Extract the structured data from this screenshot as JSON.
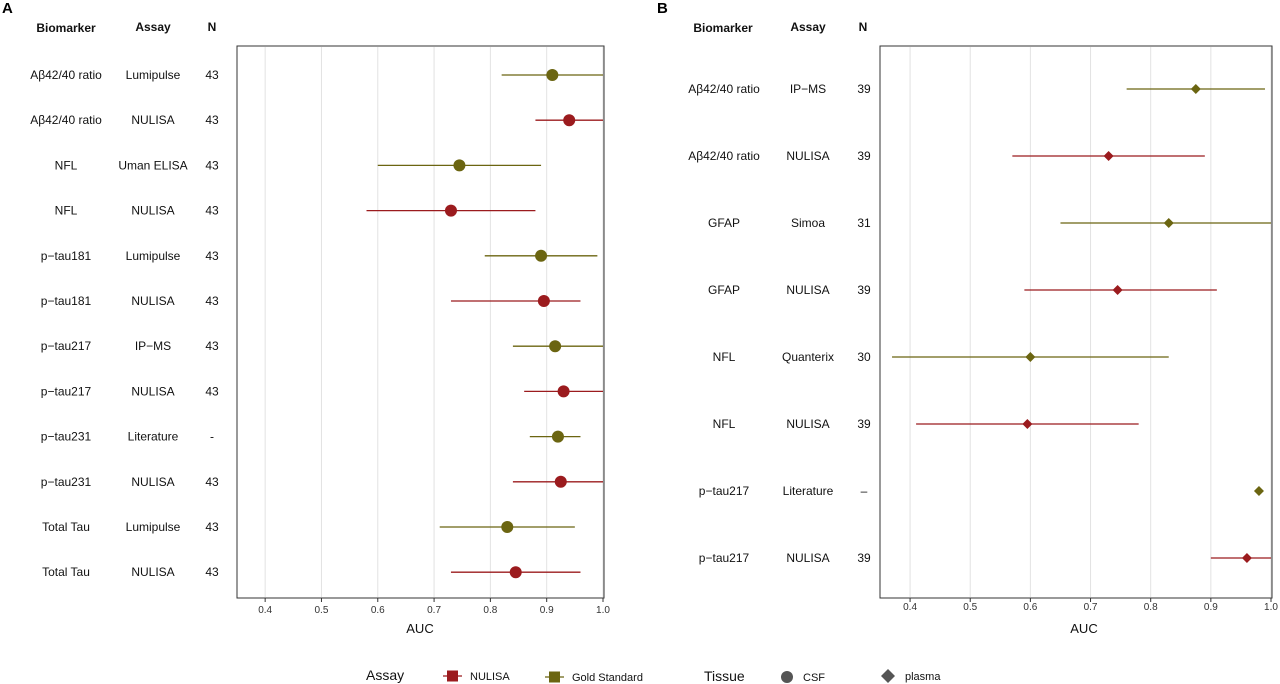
{
  "panels": [
    {
      "label": "A",
      "headers": {
        "biomarker": "Biomarker",
        "assay": "Assay",
        "n": "N"
      },
      "rows": [
        {
          "biomarker": "Aβ42/40 ratio",
          "assay": "Lumipulse",
          "n": "43"
        },
        {
          "biomarker": "Aβ42/40 ratio",
          "assay": "NULISA",
          "n": "43"
        },
        {
          "biomarker": "NFL",
          "assay": "Uman ELISA",
          "n": "43"
        },
        {
          "biomarker": "NFL",
          "assay": "NULISA",
          "n": "43"
        },
        {
          "biomarker": "p−tau181",
          "assay": "Lumipulse",
          "n": "43"
        },
        {
          "biomarker": "p−tau181",
          "assay": "NULISA",
          "n": "43"
        },
        {
          "biomarker": "p−tau217",
          "assay": "IP−MS",
          "n": "43"
        },
        {
          "biomarker": "p−tau217",
          "assay": "NULISA",
          "n": "43"
        },
        {
          "biomarker": "p−tau231",
          "assay": "Literature",
          "n": "-"
        },
        {
          "biomarker": "p−tau231",
          "assay": "NULISA",
          "n": "43"
        },
        {
          "biomarker": "Total Tau",
          "assay": "Lumipulse",
          "n": "43"
        },
        {
          "biomarker": "Total Tau",
          "assay": "NULISA",
          "n": "43"
        }
      ]
    },
    {
      "label": "B",
      "headers": {
        "biomarker": "Biomarker",
        "assay": "Assay",
        "n": "N"
      },
      "rows": [
        {
          "biomarker": "Aβ42/40 ratio",
          "assay": "IP−MS",
          "n": "39"
        },
        {
          "biomarker": "Aβ42/40 ratio",
          "assay": "NULISA",
          "n": "39"
        },
        {
          "biomarker": "GFAP",
          "assay": "Simoa",
          "n": "31"
        },
        {
          "biomarker": "GFAP",
          "assay": "NULISA",
          "n": "39"
        },
        {
          "biomarker": "NFL",
          "assay": "Quanterix",
          "n": "30"
        },
        {
          "biomarker": "NFL",
          "assay": "NULISA",
          "n": "39"
        },
        {
          "biomarker": "p−tau217",
          "assay": "Literature",
          "n": "–"
        },
        {
          "biomarker": "p−tau217",
          "assay": "NULISA",
          "n": "39"
        }
      ]
    }
  ],
  "legend": {
    "assay_title": "Assay",
    "assay_items": [
      {
        "label": "NULISA",
        "color": "#9b1b1e"
      },
      {
        "label": "Gold Standard",
        "color": "#6b6511"
      }
    ],
    "tissue_title": "Tissue",
    "tissue_items": [
      {
        "label": "CSF",
        "shape": "circle"
      },
      {
        "label": "plasma",
        "shape": "diamond"
      }
    ]
  },
  "chart_data": [
    {
      "type": "forest",
      "panel": "A",
      "xlabel": "AUC",
      "xlim": [
        0.35,
        1.0
      ],
      "xticks": [
        "0.4",
        "0.5",
        "0.6",
        "0.7",
        "0.8",
        "0.9",
        "1.0"
      ],
      "tissue": "CSF",
      "marker": "circle",
      "points": [
        {
          "auc": 0.91,
          "lo": 0.82,
          "hi": 1.0,
          "assay": "Gold Standard"
        },
        {
          "auc": 0.94,
          "lo": 0.88,
          "hi": 1.0,
          "assay": "NULISA"
        },
        {
          "auc": 0.745,
          "lo": 0.6,
          "hi": 0.89,
          "assay": "Gold Standard"
        },
        {
          "auc": 0.73,
          "lo": 0.58,
          "hi": 0.88,
          "assay": "NULISA"
        },
        {
          "auc": 0.89,
          "lo": 0.79,
          "hi": 0.99,
          "assay": "Gold Standard"
        },
        {
          "auc": 0.895,
          "lo": 0.73,
          "hi": 0.96,
          "assay": "NULISA"
        },
        {
          "auc": 0.915,
          "lo": 0.84,
          "hi": 1.0,
          "assay": "Gold Standard"
        },
        {
          "auc": 0.93,
          "lo": 0.86,
          "hi": 1.0,
          "assay": "NULISA"
        },
        {
          "auc": 0.92,
          "lo": 0.87,
          "hi": 0.96,
          "assay": "Gold Standard"
        },
        {
          "auc": 0.925,
          "lo": 0.84,
          "hi": 1.0,
          "assay": "NULISA"
        },
        {
          "auc": 0.83,
          "lo": 0.71,
          "hi": 0.95,
          "assay": "Gold Standard"
        },
        {
          "auc": 0.845,
          "lo": 0.73,
          "hi": 0.96,
          "assay": "NULISA"
        }
      ]
    },
    {
      "type": "forest",
      "panel": "B",
      "xlabel": "AUC",
      "xlim": [
        0.35,
        1.0
      ],
      "xticks": [
        "0.4",
        "0.5",
        "0.6",
        "0.7",
        "0.8",
        "0.9",
        "1.0"
      ],
      "tissue": "plasma",
      "marker": "diamond",
      "points": [
        {
          "auc": 0.875,
          "lo": 0.76,
          "hi": 0.99,
          "assay": "Gold Standard"
        },
        {
          "auc": 0.73,
          "lo": 0.57,
          "hi": 0.89,
          "assay": "NULISA"
        },
        {
          "auc": 0.83,
          "lo": 0.65,
          "hi": 1.0,
          "assay": "Gold Standard"
        },
        {
          "auc": 0.745,
          "lo": 0.59,
          "hi": 0.91,
          "assay": "NULISA"
        },
        {
          "auc": 0.6,
          "lo": 0.37,
          "hi": 0.83,
          "assay": "Gold Standard"
        },
        {
          "auc": 0.595,
          "lo": 0.41,
          "hi": 0.78,
          "assay": "NULISA"
        },
        {
          "auc": 0.98,
          "lo": null,
          "hi": null,
          "assay": "Gold Standard"
        },
        {
          "auc": 0.96,
          "lo": 0.9,
          "hi": 1.0,
          "assay": "NULISA"
        }
      ]
    }
  ]
}
